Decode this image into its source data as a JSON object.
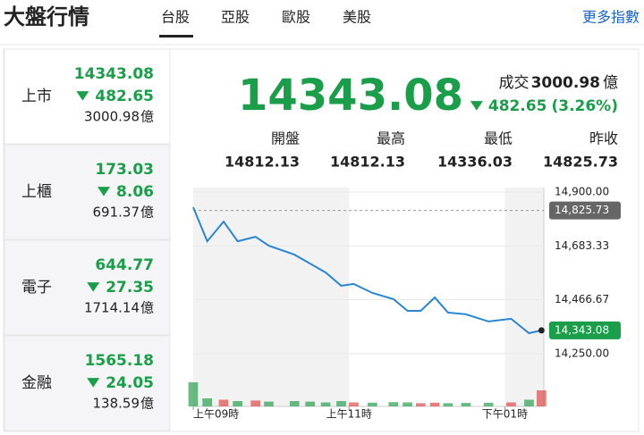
{
  "header": {
    "title": "大盤行情",
    "tabs": [
      "台股",
      "亞股",
      "歐股",
      "美股"
    ],
    "more": "更多指數"
  },
  "markets": [
    {
      "name": "上市",
      "price": 14343.08,
      "change": 482.65,
      "volume": 3000.98,
      "unit": "億"
    },
    {
      "name": "上櫃",
      "price": 173.03,
      "change": 8.06,
      "volume": 691.37,
      "unit": "億"
    },
    {
      "name": "電子",
      "price": 644.77,
      "change": 27.35,
      "volume": 1714.14,
      "unit": "億"
    },
    {
      "name": "金融",
      "price": 1565.18,
      "change": 24.05,
      "volume": 138.59,
      "unit": "億"
    }
  ],
  "summary": {
    "price": 14343.08,
    "volume_label": "成交",
    "volume": 3000.98,
    "unit": "億",
    "change": 482.65,
    "change_pct": "(3.26%)",
    "stats": [
      {
        "label": "開盤",
        "value": 14812.13
      },
      {
        "label": "最高",
        "value": 14812.13
      },
      {
        "label": "最低",
        "value": 14336.03
      },
      {
        "label": "昨收",
        "value": 14825.73
      }
    ]
  },
  "chart_data": {
    "type": "line",
    "color": "#2a86d1",
    "x": [
      9,
      9.18,
      9.39,
      9.57,
      9.8,
      9.97,
      10.3,
      10.5,
      10.7,
      10.9,
      11.06,
      11.3,
      11.57,
      11.75,
      11.92,
      12.1,
      12.27,
      12.5,
      12.79,
      13.08,
      13.31,
      13.47
    ],
    "values": [
      14839,
      14702,
      14781,
      14702,
      14720,
      14684,
      14648,
      14612,
      14576,
      14523,
      14530,
      14494,
      14469,
      14422,
      14422,
      14476,
      14415,
      14408,
      14379,
      14390,
      14332,
      14343.08
    ],
    "last_label": "14,343.08",
    "volume": [
      90,
      30,
      25,
      20,
      22,
      18,
      20,
      18,
      15,
      20,
      15,
      14,
      16,
      15,
      12,
      14,
      12,
      13,
      14,
      15,
      25,
      60
    ],
    "volume_ylim": [
      0,
      100
    ],
    "up_color": "#e04a4a",
    "down_color": "#2aa150",
    "xlim": [
      9,
      13.5
    ],
    "xticks": [
      {
        "value": 9,
        "label": "上午09時"
      },
      {
        "value": 11,
        "label": "上午11時"
      },
      {
        "value": 13,
        "label": "下午01時"
      }
    ],
    "ylim": [
      14235,
      14918
    ],
    "yticks": [
      {
        "value": 14250,
        "label": "14,250.00"
      },
      {
        "value": 14466.67,
        "label": "14,466.67"
      },
      {
        "value": 14683.33,
        "label": "14,683.33"
      },
      {
        "value": 14900,
        "label": "14,900.00"
      }
    ],
    "reference": {
      "value": 14825.73,
      "label": "14,825.73"
    }
  }
}
